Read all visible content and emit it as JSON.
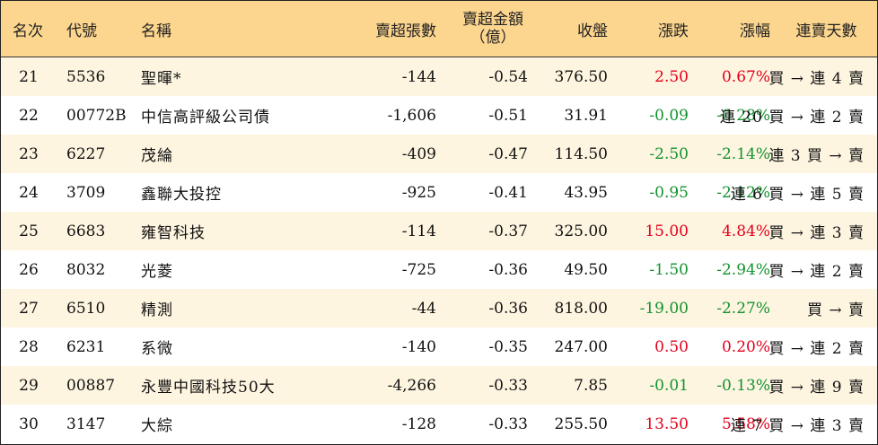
{
  "header": {
    "rank": "名次",
    "code": "代號",
    "name": "名稱",
    "net_sell_lots": "賣超張數",
    "net_sell_amount_line1": "賣超金額",
    "net_sell_amount_line2": "（億）",
    "close": "收盤",
    "change": "漲跌",
    "pct": "漲幅",
    "streak": "連賣天數"
  },
  "colors": {
    "up": "#e3001b",
    "down": "#12922e",
    "header_bg": "#fcd58e",
    "odd_row_bg": "#fef5e1"
  },
  "rows": [
    {
      "rank": "21",
      "code": "5536",
      "name": "聖暉*",
      "lots": "-144",
      "amount": "-0.54",
      "close": "376.50",
      "change": "2.50",
      "pct": "0.67%",
      "dir": "up",
      "streak": "買 → 連 4 賣"
    },
    {
      "rank": "22",
      "code": "00772B",
      "name": "中信高評級公司債",
      "lots": "-1,606",
      "amount": "-0.51",
      "close": "31.91",
      "change": "-0.09",
      "pct": "-0.28%",
      "dir": "down",
      "streak": "連 20 買 → 連 2 賣"
    },
    {
      "rank": "23",
      "code": "6227",
      "name": "茂綸",
      "lots": "-409",
      "amount": "-0.47",
      "close": "114.50",
      "change": "-2.50",
      "pct": "-2.14%",
      "dir": "down",
      "streak": "連 3 買 → 賣"
    },
    {
      "rank": "24",
      "code": "3709",
      "name": "鑫聯大投控",
      "lots": "-925",
      "amount": "-0.41",
      "close": "43.95",
      "change": "-0.95",
      "pct": "-2.12%",
      "dir": "down",
      "streak": "連 6 買 → 連 5 賣"
    },
    {
      "rank": "25",
      "code": "6683",
      "name": "雍智科技",
      "lots": "-114",
      "amount": "-0.37",
      "close": "325.00",
      "change": "15.00",
      "pct": "4.84%",
      "dir": "up",
      "streak": "買 → 連 3 賣"
    },
    {
      "rank": "26",
      "code": "8032",
      "name": "光菱",
      "lots": "-725",
      "amount": "-0.36",
      "close": "49.50",
      "change": "-1.50",
      "pct": "-2.94%",
      "dir": "down",
      "streak": "買 → 連 2 賣"
    },
    {
      "rank": "27",
      "code": "6510",
      "name": "精測",
      "lots": "-44",
      "amount": "-0.36",
      "close": "818.00",
      "change": "-19.00",
      "pct": "-2.27%",
      "dir": "down",
      "streak": "買 → 賣"
    },
    {
      "rank": "28",
      "code": "6231",
      "name": "系微",
      "lots": "-140",
      "amount": "-0.35",
      "close": "247.00",
      "change": "0.50",
      "pct": "0.20%",
      "dir": "up",
      "streak": "買 → 連 2 賣"
    },
    {
      "rank": "29",
      "code": "00887",
      "name": "永豐中國科技50大",
      "lots": "-4,266",
      "amount": "-0.33",
      "close": "7.85",
      "change": "-0.01",
      "pct": "-0.13%",
      "dir": "down",
      "streak": "買 → 連 9 賣"
    },
    {
      "rank": "30",
      "code": "3147",
      "name": "大綜",
      "lots": "-128",
      "amount": "-0.33",
      "close": "255.50",
      "change": "13.50",
      "pct": "5.58%",
      "dir": "up",
      "streak": "連 7 買 → 連 3 賣"
    }
  ]
}
